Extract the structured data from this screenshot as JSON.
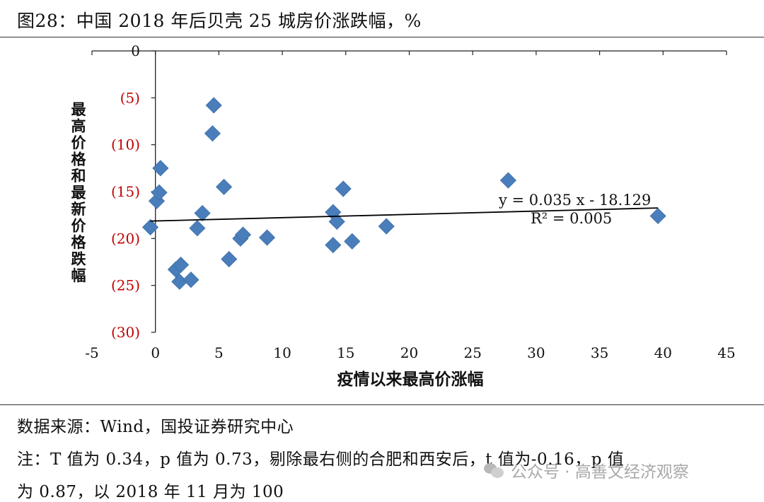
{
  "title": "图28：中国 2018 年后贝壳 25 城房价涨跌幅，%",
  "chart_data": {
    "type": "scatter",
    "xlabel": "疫情以来最高价涨幅",
    "ylabel": "最高价格和最新价格跌幅",
    "xlim": [
      -5,
      45
    ],
    "ylim": [
      -30,
      0
    ],
    "x_ticks": [
      -5,
      0,
      5,
      10,
      15,
      20,
      25,
      30,
      35,
      40,
      45
    ],
    "x_tick_labels": [
      "-5",
      "0",
      "5",
      "10",
      "15",
      "20",
      "25",
      "30",
      "35",
      "40",
      "45"
    ],
    "y_ticks": [
      0,
      -5,
      -10,
      -15,
      -20,
      -25,
      -30
    ],
    "y_tick_labels": [
      "0",
      "(5)",
      "(10)",
      "(15)",
      "(20)",
      "(25)",
      "(30)"
    ],
    "y_tick_color": "#c00000",
    "marker_color": "#4a7ebb",
    "points": [
      {
        "x": -0.4,
        "y": -18.8
      },
      {
        "x": 0.1,
        "y": -16.0
      },
      {
        "x": 0.3,
        "y": -15.1
      },
      {
        "x": 0.4,
        "y": -12.5
      },
      {
        "x": 1.6,
        "y": -23.3
      },
      {
        "x": 1.9,
        "y": -24.6
      },
      {
        "x": 2.0,
        "y": -22.8
      },
      {
        "x": 2.8,
        "y": -24.4
      },
      {
        "x": 3.3,
        "y": -18.9
      },
      {
        "x": 3.7,
        "y": -17.3
      },
      {
        "x": 4.5,
        "y": -8.8
      },
      {
        "x": 4.6,
        "y": -5.8
      },
      {
        "x": 5.4,
        "y": -14.5
      },
      {
        "x": 5.8,
        "y": -22.2
      },
      {
        "x": 6.7,
        "y": -20.0
      },
      {
        "x": 6.9,
        "y": -19.6
      },
      {
        "x": 8.8,
        "y": -19.9
      },
      {
        "x": 14.0,
        "y": -17.2
      },
      {
        "x": 14.0,
        "y": -20.7
      },
      {
        "x": 14.3,
        "y": -18.2
      },
      {
        "x": 14.8,
        "y": -14.7
      },
      {
        "x": 15.5,
        "y": -20.3
      },
      {
        "x": 18.2,
        "y": -18.7
      },
      {
        "x": 27.8,
        "y": -13.8
      },
      {
        "x": 39.6,
        "y": -17.6
      }
    ],
    "trendline": {
      "slope": 0.035,
      "intercept": -18.129,
      "x_range": [
        -0.4,
        39.6
      ],
      "color": "#000000"
    },
    "annotations": [
      "y = 0.035 x - 18.129",
      "R² = 0.005"
    ]
  },
  "footer": {
    "source": "数据来源：Wind，国投证券研究中心",
    "note_line1": "注：T 值为 0.34，p 值为 0.73，剔除最右侧的合肥和西安后，t 值为-0.16，p 值",
    "note_line2": "为 0.87，以 2018 年 11 月为 100"
  },
  "watermark": {
    "icon": "wechat-icon",
    "text": "公众号 · 高善文经济观察"
  }
}
